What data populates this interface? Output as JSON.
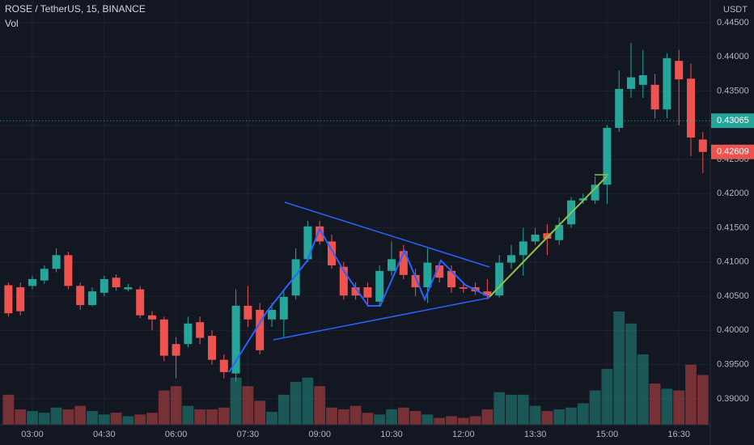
{
  "chart_data": {
    "type": "candlestick",
    "title": "ROSE / TetherUS, 15, BINANCE",
    "volume_label": "Vol",
    "axis_unit": "USDT",
    "up_color": "#26a69a",
    "down_color": "#ef5350",
    "grid": true,
    "categories": [
      null,
      null,
      "03:00",
      null,
      null,
      null,
      null,
      null,
      "04:30",
      null,
      null,
      null,
      null,
      null,
      "06:00",
      null,
      null,
      null,
      null,
      null,
      "07:30",
      null,
      null,
      null,
      null,
      null,
      "09:00",
      null,
      null,
      null,
      null,
      null,
      "10:30",
      null,
      null,
      null,
      null,
      null,
      "12:00",
      null,
      null,
      null,
      null,
      null,
      "13:30",
      null,
      null,
      null,
      null,
      null,
      "15:00",
      null,
      null,
      null,
      null,
      null,
      "16:30",
      null,
      null
    ],
    "open": [
      0.4066,
      0.4063,
      0.4065,
      0.4073,
      0.409,
      0.411,
      0.4065,
      0.4037,
      0.4055,
      0.4077,
      0.406,
      0.406,
      0.4022,
      0.4016,
      0.398,
      0.398,
      0.4012,
      0.3992,
      0.3957,
      0.3937,
      0.4036,
      0.403,
      0.4016,
      0.4016,
      0.4051,
      0.4104,
      0.4152,
      0.413,
      0.4093,
      0.4063,
      0.4063,
      0.4042,
      0.4087,
      0.4116,
      0.4081,
      0.4063,
      0.4095,
      0.4087,
      0.4063,
      0.4063,
      0.4057,
      0.4051,
      0.4099,
      0.411,
      0.413,
      0.4142,
      0.4132,
      0.4155,
      0.419,
      0.419,
      0.4213,
      0.4296,
      0.4353,
      0.4359,
      0.4359,
      0.4323,
      0.4394,
      0.4368,
      0.4279
    ],
    "high": [
      0.407,
      0.407,
      0.408,
      0.4095,
      0.412,
      0.4115,
      0.407,
      0.4063,
      0.408,
      0.4082,
      0.4068,
      0.4065,
      0.4028,
      0.402,
      0.399,
      0.402,
      0.402,
      0.4,
      0.3965,
      0.406,
      0.4065,
      0.404,
      0.404,
      0.406,
      0.412,
      0.416,
      0.416,
      0.414,
      0.41,
      0.407,
      0.407,
      0.4095,
      0.413,
      0.4125,
      0.409,
      0.412,
      0.41,
      0.4095,
      0.407,
      0.407,
      0.4075,
      0.411,
      0.4125,
      0.415,
      0.415,
      0.4155,
      0.4165,
      0.4195,
      0.42,
      0.4225,
      0.43,
      0.438,
      0.442,
      0.441,
      0.4375,
      0.4405,
      0.441,
      0.439,
      0.429
    ],
    "low": [
      0.402,
      0.4022,
      0.406,
      0.4068,
      0.4085,
      0.406,
      0.403,
      0.4035,
      0.405,
      0.4058,
      0.4057,
      0.4018,
      0.4,
      0.3955,
      0.393,
      0.3975,
      0.398,
      0.395,
      0.393,
      0.3925,
      0.4005,
      0.3965,
      0.4005,
      0.399,
      0.4045,
      0.41,
      0.4125,
      0.409,
      0.4045,
      0.4045,
      0.4035,
      0.4035,
      0.408,
      0.4075,
      0.405,
      0.404,
      0.407,
      0.4055,
      0.4055,
      0.4052,
      0.4045,
      0.4048,
      0.409,
      0.408,
      0.4125,
      0.411,
      0.4125,
      0.415,
      0.4185,
      0.4185,
      0.4185,
      0.429,
      0.434,
      0.434,
      0.431,
      0.431,
      0.43,
      0.4255,
      0.423
    ],
    "close": [
      0.4025,
      0.4028,
      0.4075,
      0.409,
      0.411,
      0.4065,
      0.4037,
      0.4057,
      0.4075,
      0.4063,
      0.4063,
      0.4022,
      0.4016,
      0.3963,
      0.3963,
      0.401,
      0.3989,
      0.3957,
      0.3939,
      0.4036,
      0.4016,
      0.3971,
      0.403,
      0.4049,
      0.4104,
      0.4152,
      0.413,
      0.4095,
      0.4051,
      0.4051,
      0.4048,
      0.4087,
      0.4104,
      0.4081,
      0.4063,
      0.4099,
      0.4077,
      0.4063,
      0.4061,
      0.4057,
      0.4051,
      0.4099,
      0.411,
      0.413,
      0.414,
      0.4134,
      0.4154,
      0.419,
      0.4193,
      0.4213,
      0.4296,
      0.4353,
      0.437,
      0.4373,
      0.4323,
      0.4398,
      0.4367,
      0.4282,
      0.42609
    ],
    "volume": [
      35,
      18,
      16,
      14,
      20,
      18,
      22,
      16,
      12,
      14,
      10,
      12,
      14,
      40,
      45,
      22,
      18,
      18,
      20,
      55,
      45,
      28,
      15,
      35,
      50,
      55,
      45,
      20,
      18,
      22,
      14,
      12,
      18,
      20,
      16,
      12,
      8,
      10,
      8,
      10,
      18,
      38,
      35,
      35,
      22,
      16,
      18,
      20,
      25,
      40,
      65,
      132,
      118,
      82,
      48,
      42,
      40,
      70,
      58
    ],
    "ylim": [
      0.3862,
      0.4483
    ],
    "yticks": [
      {
        "value": 0.39,
        "label": "0.39000"
      },
      {
        "value": 0.395,
        "label": "0.39500"
      },
      {
        "value": 0.4,
        "label": "0.40000"
      },
      {
        "value": 0.405,
        "label": "0.40500"
      },
      {
        "value": 0.41,
        "label": "0.41000"
      },
      {
        "value": 0.415,
        "label": "0.41500"
      },
      {
        "value": 0.42,
        "label": "0.42000"
      },
      {
        "value": 0.425,
        "label": "0.42500"
      },
      {
        "value": 0.43,
        "label": "0.43000"
      },
      {
        "value": 0.435,
        "label": "0.43500"
      },
      {
        "value": 0.44,
        "label": "0.44000"
      },
      {
        "value": 0.445,
        "label": "0.44500"
      }
    ],
    "price_lines": [
      {
        "value": 0.43065,
        "label": "0.43065",
        "color": "#26a69a"
      },
      {
        "value": 0.42609,
        "label": "0.42609",
        "color": "#ef5350"
      }
    ]
  }
}
